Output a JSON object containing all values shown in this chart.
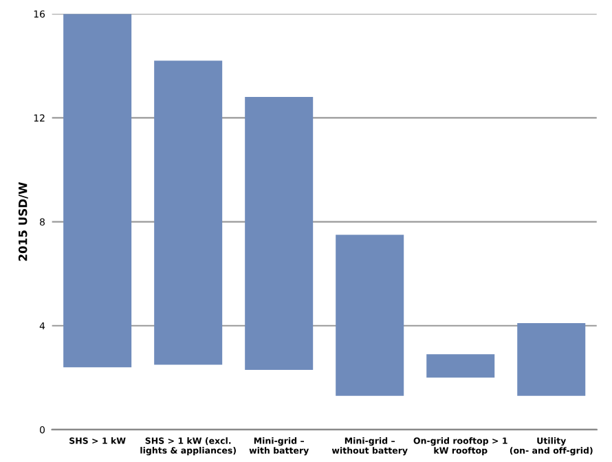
{
  "chart_data": {
    "type": "bar",
    "ylabel": "2015 USD/W",
    "categories": [
      "SHS > 1 kW",
      "SHS > 1 kW (excl.\nlights & appliances)",
      "Mini-grid –\nwith battery",
      "Mini-grid –\nwithout battery",
      "On-grid rooftop > 1\nkW rooftop",
      "Utility\n(on- and off-grid)"
    ],
    "base": [
      2.4,
      2.5,
      2.3,
      1.3,
      2.0,
      1.3
    ],
    "values": [
      13.6,
      11.7,
      10.5,
      6.2,
      0.9,
      2.8
    ],
    "color": "#6f8bbb",
    "ylim": [
      0,
      16
    ],
    "yticks": [
      0,
      4,
      8,
      12,
      16
    ],
    "grid": "y"
  }
}
